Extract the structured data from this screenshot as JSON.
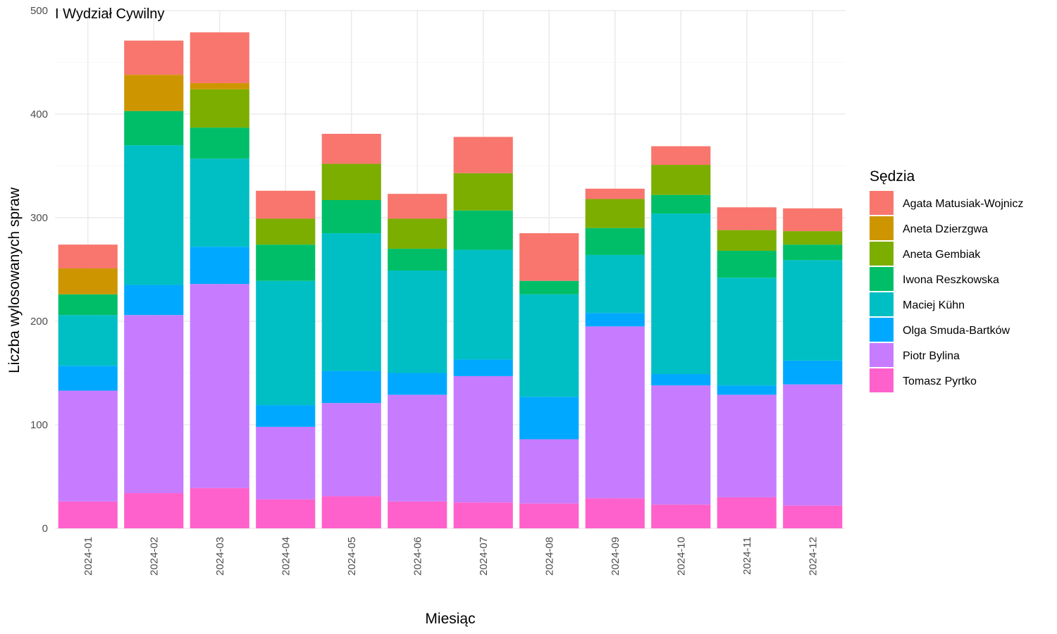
{
  "chart_data": {
    "type": "bar",
    "stacked": true,
    "title": "I Wydział Cywilny",
    "xlabel": "Miesiąc",
    "ylabel": "Liczba wylosowanych spraw",
    "ylim": [
      0,
      500
    ],
    "yticks": [
      0,
      100,
      200,
      300,
      400,
      500
    ],
    "grid": true,
    "legend_title": "Sędzia",
    "legend_position": "right",
    "categories": [
      "2024-01",
      "2024-02",
      "2024-03",
      "2024-04",
      "2024-05",
      "2024-06",
      "2024-07",
      "2024-08",
      "2024-09",
      "2024-10",
      "2024-11",
      "2024-12"
    ],
    "series": [
      {
        "name": "Agata Matusiak-Wojnicz",
        "color": "#F8766D",
        "values": [
          23,
          33,
          49,
          27,
          29,
          24,
          35,
          46,
          10,
          18,
          22,
          22
        ]
      },
      {
        "name": "Aneta Dzierzgwa",
        "color": "#CD9600",
        "values": [
          25,
          35,
          6,
          0,
          0,
          0,
          0,
          0,
          0,
          0,
          0,
          0
        ]
      },
      {
        "name": "Aneta Gembiak",
        "color": "#7CAE00",
        "values": [
          0,
          0,
          37,
          25,
          35,
          29,
          36,
          0,
          28,
          29,
          20,
          13
        ]
      },
      {
        "name": "Iwona Reszkowska",
        "color": "#00BE67",
        "values": [
          20,
          33,
          30,
          35,
          32,
          21,
          38,
          13,
          26,
          18,
          26,
          15
        ]
      },
      {
        "name": "Maciej Kühn",
        "color": "#00BFC4",
        "values": [
          49,
          135,
          85,
          120,
          133,
          99,
          106,
          99,
          56,
          155,
          104,
          97
        ]
      },
      {
        "name": "Olga Smuda-Bartków",
        "color": "#00A9FF",
        "values": [
          24,
          29,
          36,
          21,
          31,
          21,
          16,
          41,
          13,
          11,
          9,
          23
        ]
      },
      {
        "name": "Piotr Bylina",
        "color": "#C77CFF",
        "values": [
          107,
          172,
          197,
          70,
          90,
          103,
          122,
          62,
          166,
          115,
          99,
          117
        ]
      },
      {
        "name": "Tomasz Pyrtko",
        "color": "#FF61CC",
        "values": [
          26,
          34,
          39,
          28,
          31,
          26,
          25,
          24,
          29,
          23,
          30,
          22
        ]
      }
    ]
  }
}
